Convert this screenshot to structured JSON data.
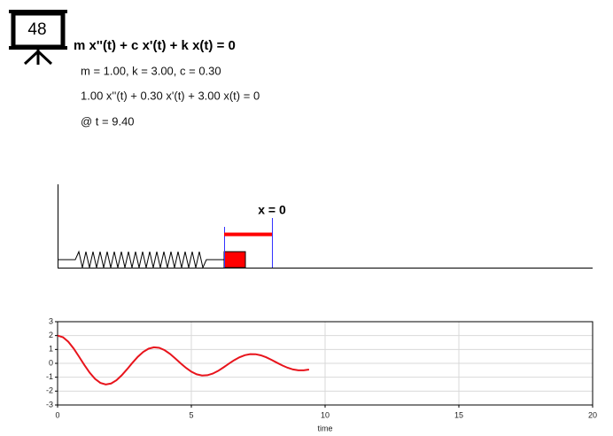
{
  "slide_number": "48",
  "equation": "m x''(t) + c x'(t) + k x(t) = 0",
  "parameters": "m = 1.00, k = 3.00, c = 0.30",
  "substituted": "1.00 x''(t) + 0.30 x'(t) + 3.00 x(t) = 0",
  "time_label": "@ t = 9.40",
  "equilibrium_label": "x = 0",
  "chart_data": {
    "type": "line",
    "x_label": "time",
    "x": [
      0,
      0.2,
      0.4,
      0.6,
      0.8,
      1.0,
      1.2,
      1.4,
      1.6,
      1.8,
      2.0,
      2.2,
      2.4,
      2.6,
      2.8,
      3.0,
      3.2,
      3.4,
      3.6,
      3.8,
      4.0,
      4.2,
      4.4,
      4.6,
      4.8,
      5.0,
      5.2,
      5.4,
      5.6,
      5.8,
      6.0,
      6.2,
      6.4,
      6.6,
      6.8,
      7.0,
      7.2,
      7.4,
      7.6,
      7.8,
      8.0,
      8.2,
      8.4,
      8.6,
      8.8,
      9.0,
      9.2,
      9.4
    ],
    "series": [
      {
        "color": "#e8141c",
        "values": [
          2.0,
          1.884,
          1.557,
          1.07,
          0.487,
          -0.118,
          -0.673,
          -1.119,
          -1.409,
          -1.521,
          -1.453,
          -1.217,
          -0.855,
          -0.421,
          0.043,
          0.472,
          0.822,
          1.055,
          1.155,
          1.116,
          0.95,
          0.684,
          0.354,
          0.003,
          -0.327,
          -0.602,
          -0.791,
          -0.876,
          -0.857,
          -0.74,
          -0.546,
          -0.295,
          -0.03,
          0.225,
          0.436,
          0.588,
          0.664,
          0.657,
          0.575,
          0.432,
          0.247,
          0.044,
          -0.152,
          -0.319,
          -0.44,
          -0.503,
          -0.504,
          -0.447
        ]
      }
    ],
    "xlim": [
      0,
      20
    ],
    "xticks": [
      0,
      5,
      10,
      15,
      20
    ],
    "ylim": [
      -3,
      3
    ],
    "yticks": [
      -3,
      -2,
      -1,
      0,
      1,
      2,
      3
    ],
    "grid": true
  }
}
